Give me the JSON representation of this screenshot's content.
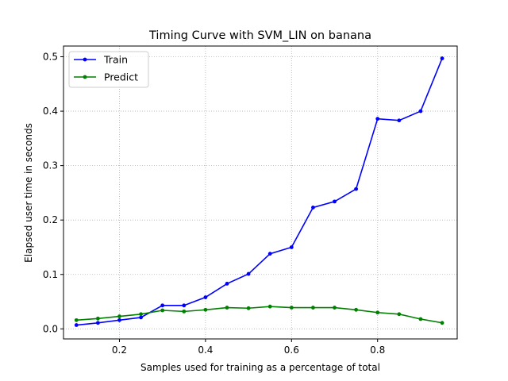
{
  "chart_data": {
    "type": "line",
    "title": "Timing Curve with SVM_LIN on banana",
    "xlabel": "Samples used for training as a percentage of total",
    "ylabel": "Elapsed user time in seconds",
    "xlim": [
      0.07,
      0.985
    ],
    "ylim": [
      -0.0185,
      0.5197
    ],
    "xticks": [
      0.2,
      0.4,
      0.6,
      0.8
    ],
    "xtick_labels": [
      "0.2",
      "0.4",
      "0.6",
      "0.8"
    ],
    "yticks": [
      0.0,
      0.1,
      0.2,
      0.3,
      0.4,
      0.5
    ],
    "ytick_labels": [
      "0.0",
      "0.1",
      "0.2",
      "0.3",
      "0.4",
      "0.5"
    ],
    "grid": true,
    "legend_position": "top-left",
    "x": [
      0.1,
      0.15,
      0.2,
      0.25,
      0.3,
      0.35,
      0.4,
      0.45,
      0.5,
      0.55,
      0.6,
      0.65,
      0.7,
      0.75,
      0.8,
      0.85,
      0.9,
      0.95
    ],
    "series": [
      {
        "name": "Train",
        "color": "#0000ff",
        "values": [
          0.007,
          0.011,
          0.016,
          0.021,
          0.043,
          0.043,
          0.058,
          0.083,
          0.101,
          0.138,
          0.15,
          0.223,
          0.234,
          0.257,
          0.386,
          0.383,
          0.4,
          0.497
        ]
      },
      {
        "name": "Predict",
        "color": "#008000",
        "values": [
          0.016,
          0.019,
          0.023,
          0.027,
          0.034,
          0.032,
          0.035,
          0.039,
          0.038,
          0.041,
          0.039,
          0.039,
          0.039,
          0.035,
          0.03,
          0.027,
          0.018,
          0.011
        ]
      }
    ]
  }
}
